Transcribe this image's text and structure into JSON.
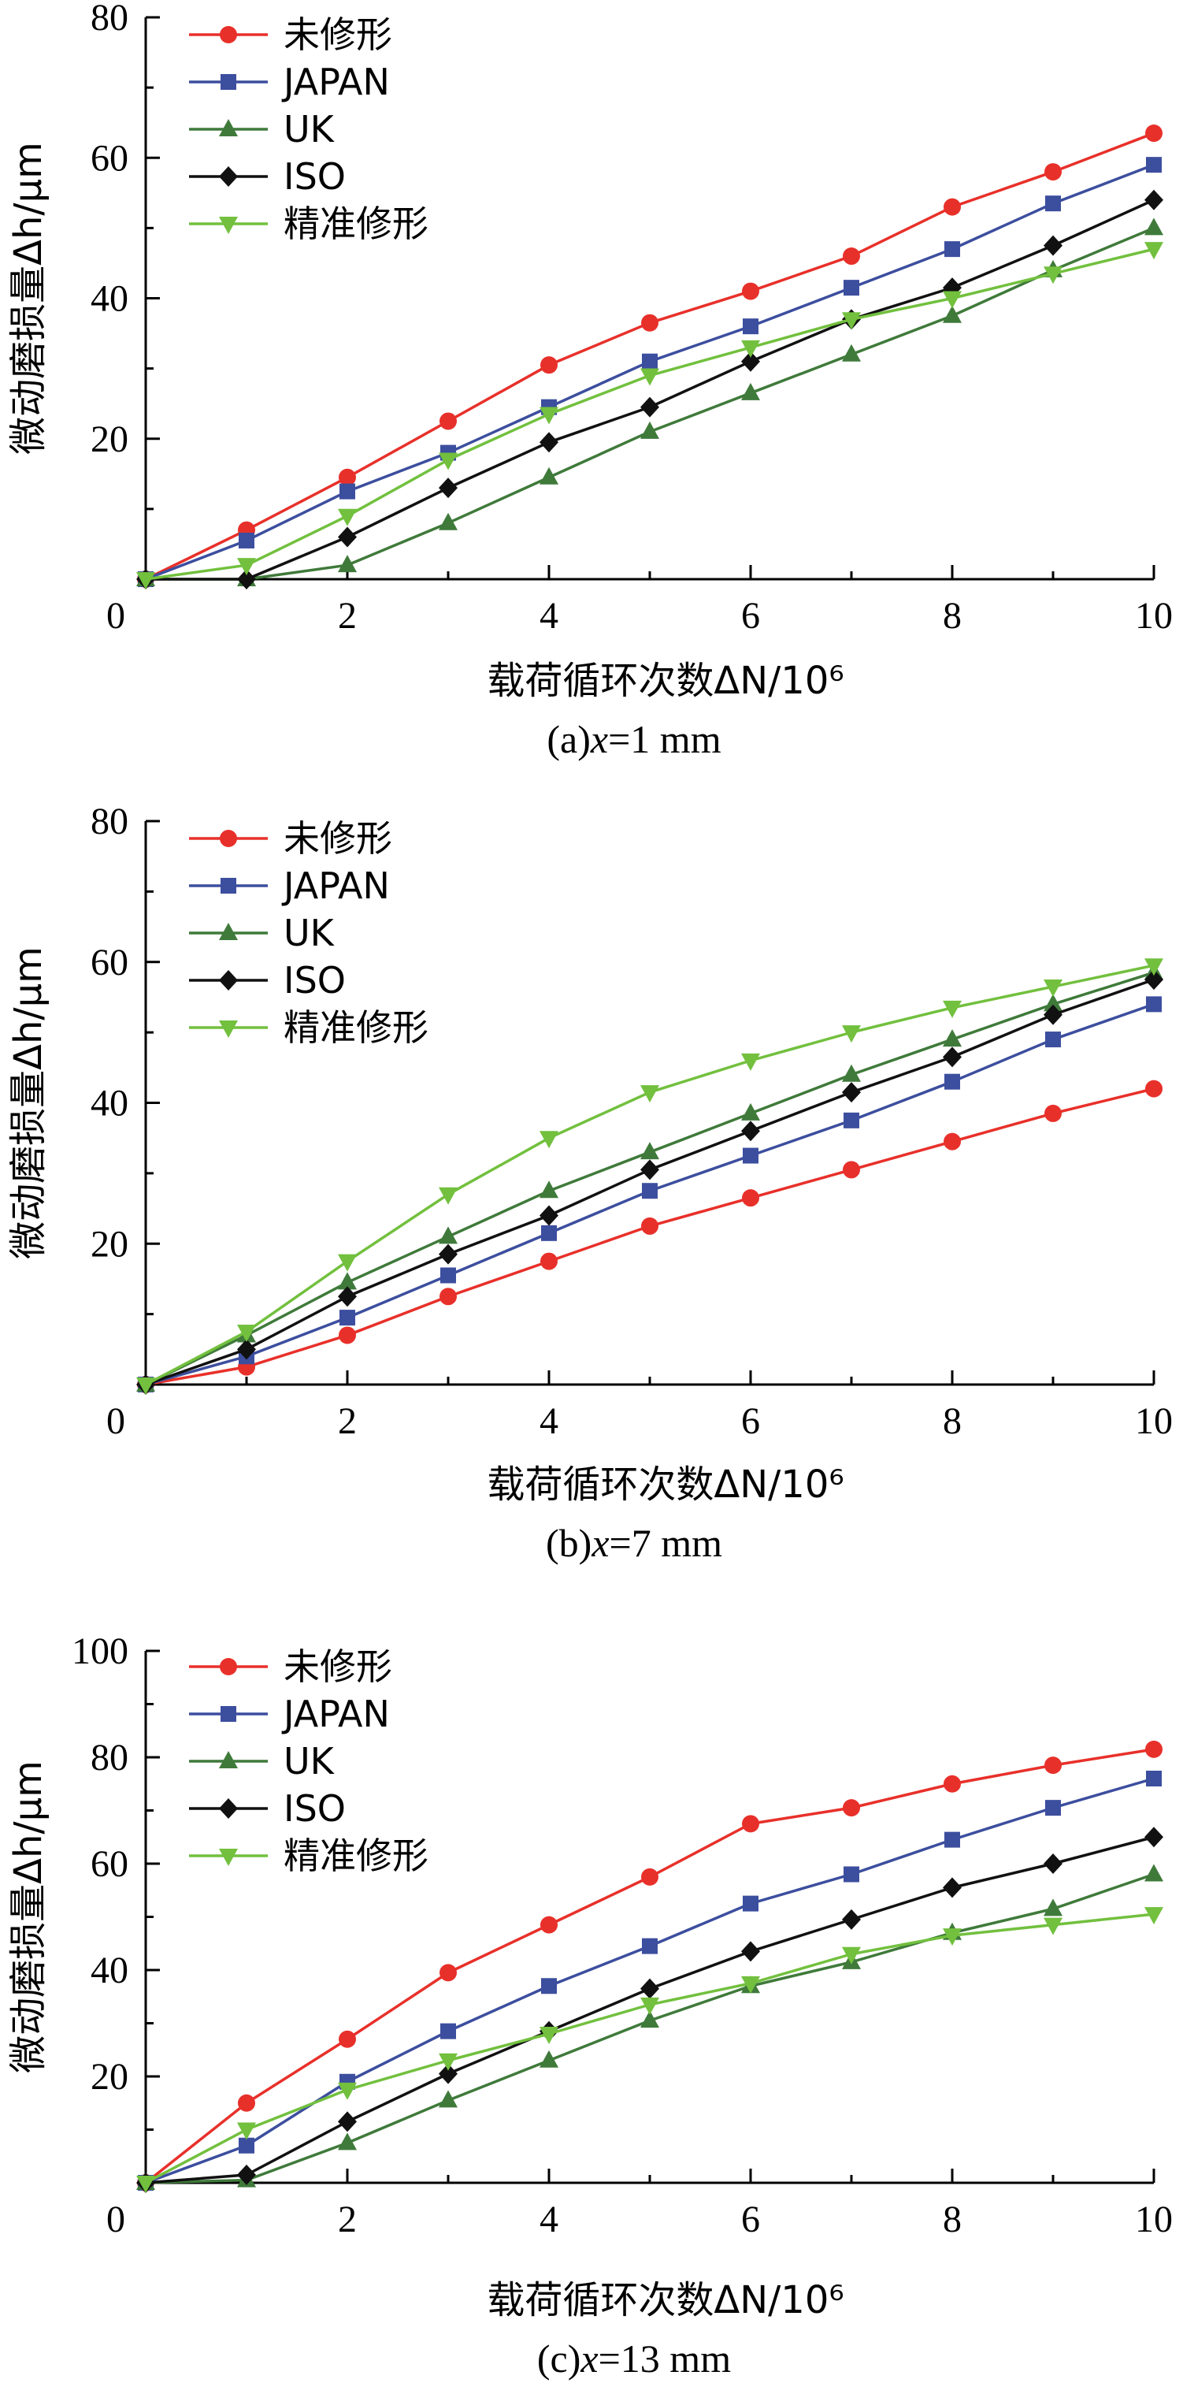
{
  "figure": {
    "charts": [
      {
        "caption": "(a)x=1 mm",
        "caption_parts": [
          "(a)",
          "x",
          "=1 mm"
        ],
        "xlabel": "载荷循环次数ΔN/10⁶",
        "ylabel": "微动磨损量Δh/μm",
        "y_ticks": [
          "20",
          "40",
          "60",
          "80"
        ],
        "x_ticks": [
          "0",
          "2",
          "4",
          "6",
          "8",
          "10"
        ]
      },
      {
        "caption": "(b)x=7 mm",
        "caption_parts": [
          "(b)",
          "x",
          "=7 mm"
        ],
        "xlabel": "载荷循环次数ΔN/10⁶",
        "ylabel": "微动磨损量Δh/μm",
        "y_ticks": [
          "20",
          "40",
          "60",
          "80"
        ],
        "x_ticks": [
          "0",
          "2",
          "4",
          "6",
          "8",
          "10"
        ]
      },
      {
        "caption": "(c)x=13 mm",
        "caption_parts": [
          "(c)",
          "x",
          "=13 mm"
        ],
        "xlabel": "载荷循环次数ΔN/10⁶",
        "ylabel": "微动磨损量Δh/μm",
        "y_ticks": [
          "20",
          "40",
          "60",
          "80",
          "100"
        ],
        "x_ticks": [
          "0",
          "2",
          "4",
          "6",
          "8",
          "10"
        ]
      }
    ]
  },
  "chart_data": [
    {
      "type": "line",
      "title": "(a)x=1 mm",
      "xlabel": "载荷循环次数ΔN/10⁶",
      "ylabel": "微动磨损量Δh/μm",
      "xlim": [
        0,
        10
      ],
      "ylim": [
        0,
        80
      ],
      "grid": false,
      "legend_position": "top-left",
      "x": [
        0,
        1,
        2,
        3,
        4,
        5,
        6,
        7,
        8,
        9,
        10
      ],
      "series": [
        {
          "name": "未修形",
          "color": "#e8302a",
          "marker": "circle",
          "values": [
            0,
            7,
            14.5,
            22.5,
            30.5,
            36.5,
            41,
            46,
            53,
            58,
            63.5
          ]
        },
        {
          "name": "JAPAN",
          "color": "#3c4e9e",
          "marker": "square",
          "values": [
            0,
            5.5,
            12.5,
            18,
            24.5,
            31,
            36,
            41.5,
            47,
            53.5,
            59
          ]
        },
        {
          "name": "UK",
          "color": "#3f7a3a",
          "marker": "triangle-up",
          "values": [
            0,
            0,
            2,
            8,
            14.5,
            21,
            26.5,
            32,
            37.5,
            44,
            50
          ]
        },
        {
          "name": "ISO",
          "color": "#111111",
          "marker": "diamond",
          "values": [
            0,
            0,
            6,
            13,
            19.5,
            24.5,
            31,
            37,
            41.5,
            47.5,
            54
          ]
        },
        {
          "name": "精准修形",
          "color": "#72c03e",
          "marker": "triangle-down",
          "values": [
            0,
            2,
            9,
            17,
            23.5,
            29,
            33,
            37,
            40,
            43.5,
            47
          ]
        }
      ]
    },
    {
      "type": "line",
      "title": "(b)x=7 mm",
      "xlabel": "载荷循环次数ΔN/10⁶",
      "ylabel": "微动磨损量Δh/μm",
      "xlim": [
        0,
        10
      ],
      "ylim": [
        0,
        80
      ],
      "grid": false,
      "legend_position": "top-left",
      "x": [
        0,
        1,
        2,
        3,
        4,
        5,
        6,
        7,
        8,
        9,
        10
      ],
      "series": [
        {
          "name": "未修形",
          "color": "#e8302a",
          "marker": "circle",
          "values": [
            0,
            2.5,
            7,
            12.5,
            17.5,
            22.5,
            26.5,
            30.5,
            34.5,
            38.5,
            42
          ]
        },
        {
          "name": "JAPAN",
          "color": "#3c4e9e",
          "marker": "square",
          "values": [
            0,
            4,
            9.5,
            15.5,
            21.5,
            27.5,
            32.5,
            37.5,
            43,
            49,
            54
          ]
        },
        {
          "name": "UK",
          "color": "#3f7a3a",
          "marker": "triangle-up",
          "values": [
            0,
            7,
            14.5,
            21,
            27.5,
            33,
            38.5,
            44,
            49,
            54,
            58.5
          ]
        },
        {
          "name": "ISO",
          "color": "#111111",
          "marker": "diamond",
          "values": [
            0,
            5,
            12.5,
            18.5,
            24,
            30.5,
            36,
            41.5,
            46.5,
            52.5,
            57.5
          ]
        },
        {
          "name": "精准修形",
          "color": "#72c03e",
          "marker": "triangle-down",
          "values": [
            0,
            7.5,
            17.5,
            27,
            35,
            41.5,
            46,
            50,
            53.5,
            56.5,
            59.5
          ]
        }
      ]
    },
    {
      "type": "line",
      "title": "(c)x=13 mm",
      "xlabel": "载荷循环次数ΔN/10⁶",
      "ylabel": "微动磨损量Δh/μm",
      "xlim": [
        0,
        10
      ],
      "ylim": [
        0,
        100
      ],
      "grid": false,
      "legend_position": "top-left",
      "x": [
        0,
        1,
        2,
        3,
        4,
        5,
        6,
        7,
        8,
        9,
        10
      ],
      "series": [
        {
          "name": "未修形",
          "color": "#e8302a",
          "marker": "circle",
          "values": [
            0,
            15,
            27,
            39.5,
            48.5,
            57.5,
            67.5,
            70.5,
            75,
            78.5,
            81.5
          ]
        },
        {
          "name": "JAPAN",
          "color": "#3c4e9e",
          "marker": "square",
          "values": [
            0,
            7,
            19,
            28.5,
            37,
            44.5,
            52.5,
            58,
            64.5,
            70.5,
            76
          ]
        },
        {
          "name": "UK",
          "color": "#3f7a3a",
          "marker": "triangle-up",
          "values": [
            0,
            0.5,
            7.5,
            15.5,
            23,
            30.5,
            37,
            41.5,
            47,
            51.5,
            58
          ]
        },
        {
          "name": "ISO",
          "color": "#111111",
          "marker": "diamond",
          "values": [
            0,
            1.5,
            11.5,
            20.5,
            28.5,
            36.5,
            43.5,
            49.5,
            55.5,
            60,
            65
          ]
        },
        {
          "name": "精准修形",
          "color": "#72c03e",
          "marker": "triangle-down",
          "values": [
            0,
            10,
            17.5,
            23,
            28,
            33.5,
            37.5,
            43,
            46.5,
            48.5,
            50.5
          ]
        }
      ]
    }
  ]
}
